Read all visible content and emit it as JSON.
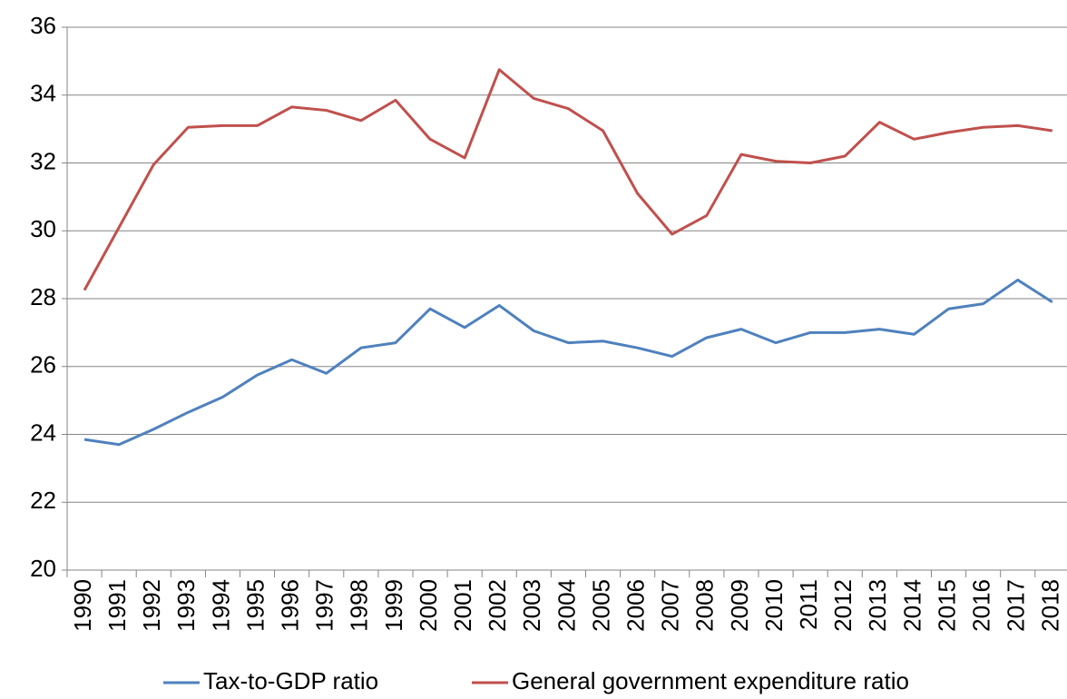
{
  "chart_data": {
    "type": "line",
    "categories": [
      "1990",
      "1991",
      "1992",
      "1993",
      "1994",
      "1995",
      "1996",
      "1997",
      "1998",
      "1999",
      "2000",
      "2001",
      "2002",
      "2003",
      "2004",
      "2005",
      "2006",
      "2007",
      "2008",
      "2009",
      "2010",
      "2011",
      "2012",
      "2013",
      "2014",
      "2015",
      "2016",
      "2017",
      "2018"
    ],
    "series": [
      {
        "name": "Tax-to-GDP ratio",
        "color": "#4f81bd",
        "values": [
          23.85,
          23.7,
          24.15,
          24.65,
          25.1,
          25.75,
          26.2,
          25.8,
          26.55,
          26.7,
          27.7,
          27.15,
          27.8,
          27.05,
          26.7,
          26.75,
          26.55,
          26.3,
          26.85,
          27.1,
          26.7,
          27.0,
          27.0,
          27.1,
          26.95,
          27.7,
          27.85,
          28.55,
          27.9
        ]
      },
      {
        "name": "General government expenditure ratio",
        "color": "#c0504d",
        "values": [
          28.25,
          30.1,
          31.95,
          33.05,
          33.1,
          33.1,
          33.65,
          33.55,
          33.25,
          33.85,
          32.7,
          32.15,
          34.75,
          33.9,
          33.6,
          32.95,
          31.1,
          29.9,
          30.45,
          32.25,
          32.05,
          32.0,
          32.2,
          33.2,
          32.7,
          32.9,
          33.05,
          33.1,
          32.95
        ]
      }
    ],
    "ylim": [
      20,
      36
    ],
    "yticks": [
      20,
      22,
      24,
      26,
      28,
      30,
      32,
      34,
      36
    ],
    "grid": true,
    "legend": "bottom"
  }
}
